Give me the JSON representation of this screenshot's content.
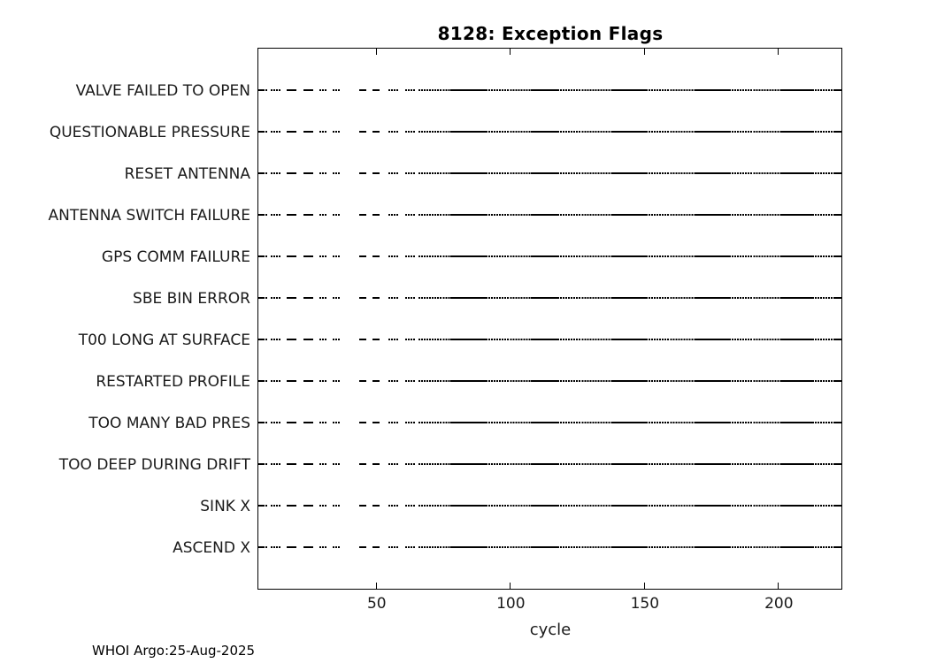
{
  "footer": {
    "text": "WHOI Argo:25-Aug-2025"
  },
  "colors": {
    "marker": "#000000",
    "axis": "#000000",
    "label": "#1a1a1a",
    "background": "#ffffff"
  },
  "chart_data": {
    "type": "scatter",
    "title": "8128: Exception Flags",
    "xlabel": "cycle",
    "ylabel": "",
    "x_ticks": [
      50,
      100,
      150,
      200
    ],
    "xlim": [
      6,
      223.5
    ],
    "grid": false,
    "legend": false,
    "categories": [
      "VALVE FAILED TO OPEN",
      "QUESTIONABLE PRESSURE",
      "RESET ANTENNA",
      "ANTENNA SWITCH FAILURE",
      "GPS COMM FAILURE",
      "SBE BIN ERROR",
      "T00 LONG AT SURFACE",
      "RESTARTED PROFILE",
      "TOO MANY BAD PRES",
      "TOO DEEP DURING DRIFT",
      "SINK X",
      "ASCEND X"
    ],
    "pattern_shared_by_all_categories": true,
    "marker_runs": [
      {
        "c0": 6,
        "c1": 9,
        "style": "dots"
      },
      {
        "c0": 11,
        "c1": 14,
        "style": "dots"
      },
      {
        "c0": 17,
        "c1": 20,
        "style": "solid"
      },
      {
        "c0": 23,
        "c1": 26,
        "style": "solid"
      },
      {
        "c0": 29,
        "c1": 31,
        "style": "dots"
      },
      {
        "c0": 34,
        "c1": 36,
        "style": "dots"
      },
      {
        "c0": 44,
        "c1": 46,
        "style": "solid"
      },
      {
        "c0": 49,
        "c1": 51,
        "style": "solid"
      },
      {
        "c0": 55,
        "c1": 58,
        "style": "dots"
      },
      {
        "c0": 61,
        "c1": 64,
        "style": "dots"
      },
      {
        "c0": 66,
        "c1": 78,
        "style": "dots"
      },
      {
        "c0": 78,
        "c1": 91,
        "style": "solid"
      },
      {
        "c0": 91,
        "c1": 108,
        "style": "dots"
      },
      {
        "c0": 108,
        "c1": 118,
        "style": "solid"
      },
      {
        "c0": 118,
        "c1": 138,
        "style": "dots"
      },
      {
        "c0": 138,
        "c1": 151,
        "style": "solid"
      },
      {
        "c0": 151,
        "c1": 169,
        "style": "dots"
      },
      {
        "c0": 169,
        "c1": 182,
        "style": "solid"
      },
      {
        "c0": 182,
        "c1": 201,
        "style": "dots"
      },
      {
        "c0": 201,
        "c1": 213,
        "style": "solid"
      },
      {
        "c0": 213,
        "c1": 223,
        "style": "dots"
      }
    ]
  }
}
